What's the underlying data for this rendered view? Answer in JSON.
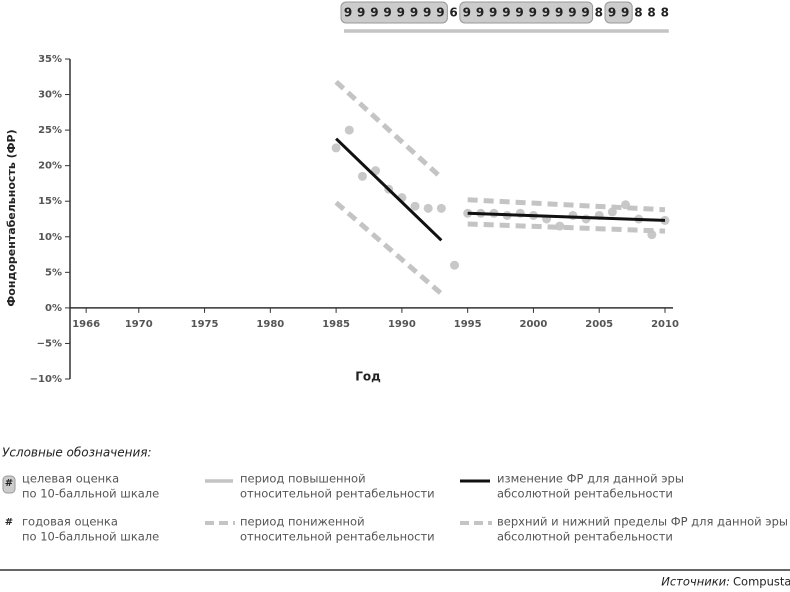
{
  "chart_data": {
    "type": "scatter",
    "ratings": {
      "digits": [
        "9",
        "9",
        "9",
        "9",
        "9",
        "9",
        "9",
        "9",
        "6",
        "9",
        "9",
        "9",
        "9",
        "9",
        "9",
        "9",
        "9",
        "9",
        "9",
        "8",
        "9",
        "9",
        "8",
        "8",
        "8"
      ],
      "target": [
        true,
        true,
        true,
        true,
        true,
        true,
        true,
        true,
        false,
        true,
        true,
        true,
        true,
        true,
        true,
        true,
        true,
        true,
        true,
        false,
        true,
        true,
        false,
        false,
        false
      ]
    },
    "ylabel": "Фондорентабельность (ФР)",
    "xlabel": "Год",
    "xlim": [
      1965,
      2010
    ],
    "xticks": [
      1966,
      1970,
      1975,
      1980,
      1985,
      1990,
      1995,
      2000,
      2005,
      2010
    ],
    "ylim": [
      -10,
      35
    ],
    "yticks": [
      {
        "value": -10,
        "label": "−10%"
      },
      {
        "value": -5,
        "label": "−5%"
      },
      {
        "value": 0,
        "label": "0%"
      },
      {
        "value": 5,
        "label": "5%"
      },
      {
        "value": 10,
        "label": "10%"
      },
      {
        "value": 15,
        "label": "15%"
      },
      {
        "value": 20,
        "label": "20%"
      },
      {
        "value": 25,
        "label": "25%"
      },
      {
        "value": 30,
        "label": "30%"
      },
      {
        "value": 35,
        "label": "35%"
      }
    ],
    "series": [
      {
        "type": "scatter",
        "color": "#c8c8c8",
        "x": [
          1985,
          1986,
          1987,
          1988,
          1989,
          1990,
          1991,
          1992,
          1993,
          1994,
          1995,
          1996,
          1997,
          1998,
          1999,
          2000,
          2001,
          2002,
          2003,
          2004,
          2005,
          2006,
          2007,
          2008,
          2009,
          2010
        ],
        "values": [
          22.5,
          25,
          18.5,
          19.3,
          16.7,
          15.5,
          14.3,
          14,
          14,
          6,
          13.3,
          13.3,
          13.3,
          13,
          13.3,
          13,
          12.5,
          11.5,
          13,
          12.5,
          13,
          13.5,
          14.5,
          12.5,
          10.3,
          12.3
        ]
      },
      {
        "type": "trend",
        "color": "#111",
        "x": [
          1985,
          1993
        ],
        "values": [
          23.8,
          9.5
        ]
      },
      {
        "type": "trend",
        "color": "#111",
        "x": [
          1995,
          2010
        ],
        "values": [
          13.3,
          12.3
        ]
      },
      {
        "type": "band",
        "color": "#c4c4c4",
        "x": [
          1985,
          1993
        ],
        "values": [
          31.8,
          18.3
        ]
      },
      {
        "type": "band",
        "color": "#c4c4c4",
        "x": [
          1985,
          1993
        ],
        "values": [
          14.8,
          2
        ]
      },
      {
        "type": "band",
        "color": "#c4c4c4",
        "x": [
          1995,
          2010
        ],
        "values": [
          15.2,
          13.8
        ]
      },
      {
        "type": "band",
        "color": "#c4c4c4",
        "x": [
          1995,
          2010
        ],
        "values": [
          11.8,
          10.8
        ]
      }
    ],
    "legend_title": "Условные обозначения:",
    "legend": [
      {
        "symbol": "#",
        "lines": [
          "целевая оценка",
          "по 10-балльной шкале"
        ]
      },
      {
        "lines": [
          "период повышенной",
          "относительной рентабельности"
        ]
      },
      {
        "lines": [
          "изменение ФР для данной эры",
          "абсолютной рентабельности"
        ]
      },
      {
        "symbol": "#",
        "lines": [
          "годовая оценка",
          "по 10-балльной шкале"
        ]
      },
      {
        "lines": [
          "период пониженной",
          "относительной рентабельности"
        ]
      },
      {
        "lines": [
          "верхний и нижний пределы ФР для данной эры",
          "абсолютной рентабельности"
        ]
      }
    ],
    "source_label": "Источники:",
    "source": "Compustat; анализ Deloitte."
  }
}
